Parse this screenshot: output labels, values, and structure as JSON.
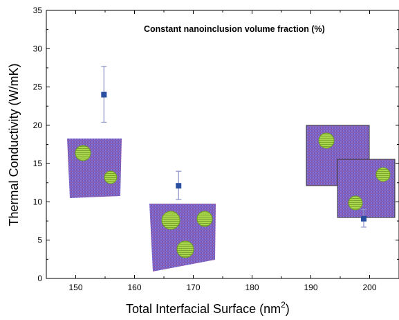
{
  "chart_data": {
    "type": "scatter",
    "xlabel": "Total Interfacial Surface (nm",
    "xlabel_sup": "2",
    "xlabel_close": ")",
    "ylabel": "Thermal Conductivity (W/mK)",
    "annotation": "Constant nanoinclusion volume fraction (%)",
    "xlim": [
      145,
      205
    ],
    "ylim": [
      0,
      35
    ],
    "xticks": [
      150,
      160,
      170,
      180,
      190,
      200
    ],
    "yticks": [
      0,
      5,
      10,
      15,
      20,
      25,
      30,
      35
    ],
    "grid": false,
    "series": [
      {
        "marker": "square",
        "color": "#2a4fa0",
        "errorbar_color": "#8a93c8",
        "points": [
          {
            "x": 154.8,
            "y": 24.0,
            "err_low": 20.4,
            "err_high": 27.7
          },
          {
            "x": 167.5,
            "y": 12.1,
            "err_low": 10.3,
            "err_high": 14.0
          },
          {
            "x": 199.0,
            "y": 7.8,
            "err_low": 6.7,
            "err_high": 9.0
          }
        ]
      }
    ],
    "colors": {
      "lattice": "#7b63c8",
      "lattice_dark": "#5a3ea8",
      "inclusion": "#a6d64a",
      "inclusion_edge": "#6a9a22"
    }
  }
}
